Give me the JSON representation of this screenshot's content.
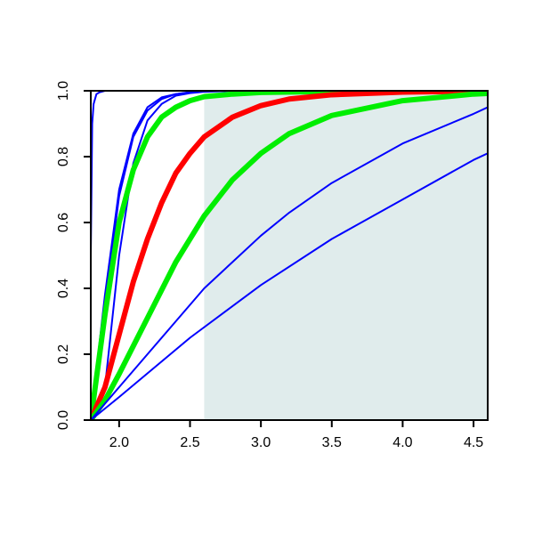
{
  "chart_data": {
    "type": "line",
    "title": "",
    "xlabel": "",
    "ylabel": "",
    "xlim": [
      1.8,
      4.6
    ],
    "ylim": [
      0.0,
      1.0
    ],
    "x_ticks": [
      2.0,
      2.5,
      3.0,
      3.5,
      4.0,
      4.5
    ],
    "x_tick_labels": [
      "2.0",
      "2.5",
      "3.0",
      "3.5",
      "4.0",
      "4.5"
    ],
    "y_ticks": [
      0.0,
      0.2,
      0.4,
      0.6,
      0.8,
      1.0
    ],
    "y_tick_labels": [
      "0.0",
      "0.2",
      "0.4",
      "0.6",
      "0.8",
      "1.0"
    ],
    "grid": false,
    "legend": "none",
    "shaded_region": {
      "x_from": 2.6,
      "x_to": 4.6,
      "color": "#e0ecec"
    },
    "series": [
      {
        "color": "#0000ff",
        "width": "thin",
        "x": [
          1.8,
          1.81,
          1.82,
          1.84,
          1.86,
          1.9,
          2.0,
          4.6
        ],
        "y": [
          0.5,
          0.9,
          0.96,
          0.99,
          0.995,
          1.0,
          1.0,
          1.0
        ]
      },
      {
        "color": "#0000ff",
        "width": "thin",
        "x": [
          1.8,
          1.9,
          2.0,
          2.1,
          2.2,
          2.3,
          2.4,
          2.5,
          2.6,
          2.8,
          3.0,
          3.5,
          4.6
        ],
        "y": [
          0.0,
          0.38,
          0.7,
          0.87,
          0.95,
          0.98,
          0.99,
          0.996,
          0.998,
          1.0,
          1.0,
          1.0,
          1.0
        ]
      },
      {
        "color": "#0000ff",
        "width": "thin",
        "x": [
          1.8,
          1.9,
          2.0,
          2.1,
          2.2,
          2.3,
          2.4,
          2.5,
          2.6,
          2.8,
          3.0,
          3.5,
          4.6
        ],
        "y": [
          0.0,
          0.35,
          0.68,
          0.86,
          0.94,
          0.975,
          0.99,
          0.995,
          0.998,
          1.0,
          1.0,
          1.0,
          1.0
        ]
      },
      {
        "color": "#0000ff",
        "width": "thin",
        "x": [
          1.8,
          1.9,
          2.0,
          2.1,
          2.2,
          2.3,
          2.4,
          2.5,
          2.6,
          2.8,
          3.0,
          3.5,
          4.6
        ],
        "y": [
          0.0,
          0.1,
          0.5,
          0.78,
          0.91,
          0.96,
          0.985,
          0.993,
          0.997,
          1.0,
          1.0,
          1.0,
          1.0
        ]
      },
      {
        "color": "#00ee00",
        "width": "thick",
        "x": [
          1.8,
          1.9,
          2.0,
          2.1,
          2.2,
          2.3,
          2.4,
          2.5,
          2.6,
          2.8,
          3.0,
          3.5,
          4.0,
          4.6
        ],
        "y": [
          0.0,
          0.32,
          0.6,
          0.76,
          0.86,
          0.92,
          0.95,
          0.97,
          0.982,
          0.99,
          0.995,
          0.998,
          0.999,
          1.0
        ]
      },
      {
        "color": "#ff0000",
        "width": "thick",
        "x": [
          1.8,
          1.9,
          2.0,
          2.1,
          2.2,
          2.3,
          2.4,
          2.5,
          2.6,
          2.8,
          3.0,
          3.2,
          3.5,
          4.0,
          4.5,
          4.6
        ],
        "y": [
          0.0,
          0.1,
          0.26,
          0.42,
          0.55,
          0.66,
          0.75,
          0.81,
          0.86,
          0.92,
          0.955,
          0.975,
          0.988,
          0.996,
          0.999,
          1.0
        ]
      },
      {
        "color": "#00ee00",
        "width": "thick",
        "x": [
          1.8,
          1.9,
          2.0,
          2.2,
          2.4,
          2.6,
          2.8,
          3.0,
          3.2,
          3.5,
          4.0,
          4.5,
          4.6
        ],
        "y": [
          0.0,
          0.06,
          0.14,
          0.31,
          0.48,
          0.62,
          0.73,
          0.81,
          0.87,
          0.925,
          0.97,
          0.99,
          0.992
        ]
      },
      {
        "color": "#0000ff",
        "width": "thin",
        "x": [
          1.8,
          2.0,
          2.2,
          2.4,
          2.6,
          2.8,
          3.0,
          3.2,
          3.5,
          4.0,
          4.5,
          4.6
        ],
        "y": [
          0.0,
          0.1,
          0.2,
          0.3,
          0.4,
          0.48,
          0.56,
          0.63,
          0.72,
          0.84,
          0.93,
          0.95
        ]
      },
      {
        "color": "#0000ff",
        "width": "thin",
        "x": [
          1.8,
          2.0,
          2.5,
          3.0,
          3.5,
          4.0,
          4.5,
          4.6
        ],
        "y": [
          0.0,
          0.07,
          0.25,
          0.41,
          0.55,
          0.67,
          0.79,
          0.81
        ]
      }
    ]
  }
}
